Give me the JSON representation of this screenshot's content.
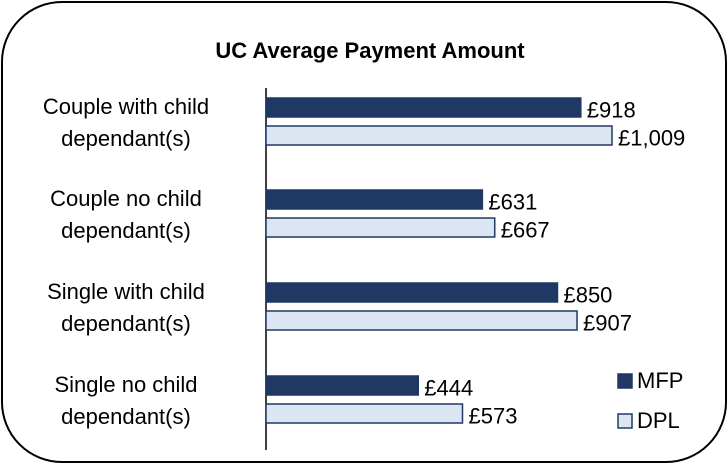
{
  "chart_data": {
    "type": "bar",
    "orientation": "horizontal",
    "title": "UC Average Payment Amount",
    "categories": [
      "Couple with child dependant(s)",
      "Couple no child dependant(s)",
      "Single with child dependant(s)",
      "Single no child dependant(s)"
    ],
    "series": [
      {
        "name": "MFP",
        "color": "#1f3864",
        "values": [
          918,
          631,
          850,
          444
        ],
        "value_labels": [
          "£918",
          "£631",
          "£850",
          "£444"
        ]
      },
      {
        "name": "DPL",
        "color": "#dce6f2",
        "values": [
          1009,
          667,
          907,
          573
        ],
        "value_labels": [
          "£1,009",
          "£667",
          "£907",
          "£573"
        ]
      }
    ],
    "legend": "lower right"
  }
}
